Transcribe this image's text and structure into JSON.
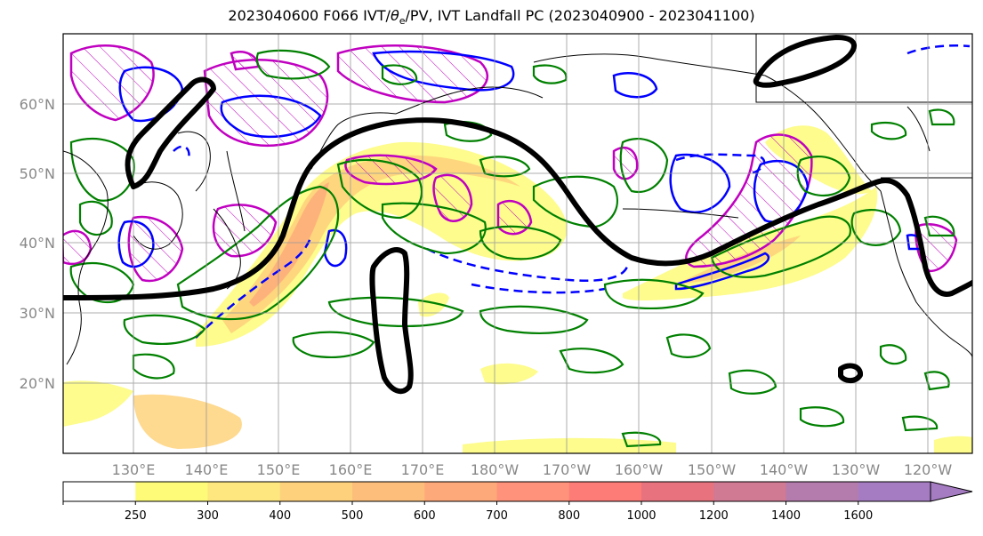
{
  "title": {
    "run": "2023040600 F066 IVT/",
    "theta_symbol": "θ",
    "theta_sub": "e",
    "rest": "/PV, IVT Landfall PC (2023040900 - 2023041100)"
  },
  "lat_labels": [
    "60°N",
    "50°N",
    "40°N",
    "30°N",
    "20°N"
  ],
  "lon_labels": [
    "130°E",
    "140°E",
    "150°E",
    "160°E",
    "170°E",
    "180°W",
    "170°W",
    "160°W",
    "150°W",
    "140°W",
    "130°W",
    "120°W"
  ],
  "colorbar": {
    "ticks": [
      "250",
      "300",
      "400",
      "500",
      "600",
      "700",
      "800",
      "1000",
      "1200",
      "1400",
      "1600"
    ],
    "colors": [
      "#ffffff",
      "#fdfb78",
      "#fde77e",
      "#fed27c",
      "#fdbe7c",
      "#fea97a",
      "#fe927a",
      "#fd7c77",
      "#e8737e",
      "#d07a93",
      "#b47cac",
      "#a57cc2"
    ]
  },
  "legend_colors": {
    "ivt_contour": "#000000",
    "theta_e": "#008000",
    "pv": "#ff00ff",
    "landfall_pc": "#0000ff"
  }
}
